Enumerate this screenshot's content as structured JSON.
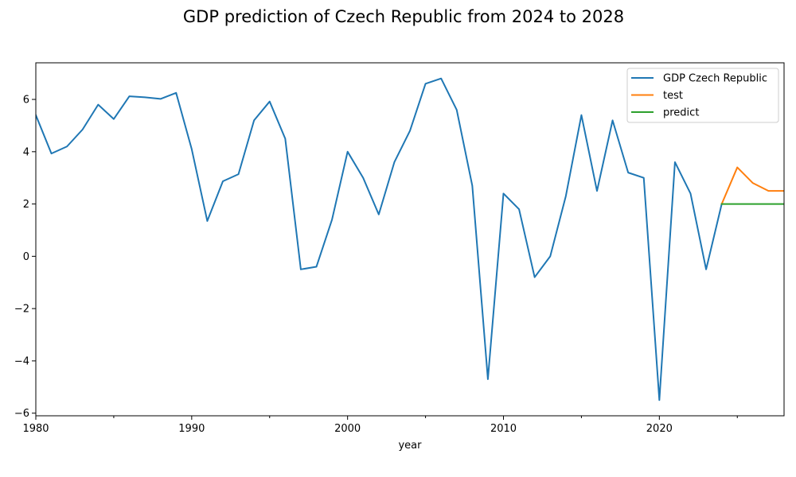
{
  "chart_data": {
    "type": "line",
    "title": "GDP prediction of Czech Republic from 2024 to 2028",
    "xlabel": "year",
    "ylabel": "",
    "xlim": [
      1980,
      2028
    ],
    "ylim": [
      -6.1,
      7.4
    ],
    "x_ticks": [
      1980,
      1990,
      2000,
      2010,
      2020
    ],
    "x_minor_ticks": [
      1985,
      1995,
      2005,
      2015,
      2025
    ],
    "y_ticks": [
      -6,
      -4,
      -2,
      0,
      2,
      4,
      6
    ],
    "grid": false,
    "legend_position": "top-right",
    "series": [
      {
        "name": "GDP Czech Republic",
        "color": "#1f77b4",
        "x": [
          1980,
          1981,
          1982,
          1983,
          1984,
          1985,
          1986,
          1987,
          1988,
          1989,
          1990,
          1991,
          1992,
          1993,
          1994,
          1995,
          1996,
          1997,
          1998,
          1999,
          2000,
          2001,
          2002,
          2003,
          2004,
          2005,
          2006,
          2007,
          2008,
          2009,
          2010,
          2011,
          2012,
          2013,
          2014,
          2015,
          2016,
          2017,
          2018,
          2019,
          2020,
          2021,
          2022,
          2023,
          2024
        ],
        "values": [
          5.4,
          3.93,
          4.2,
          4.85,
          5.8,
          5.25,
          6.12,
          6.08,
          6.02,
          6.25,
          4.1,
          1.35,
          2.87,
          3.14,
          5.2,
          5.92,
          4.5,
          -0.5,
          -0.4,
          1.4,
          4.0,
          3.0,
          1.6,
          3.6,
          4.8,
          6.6,
          6.8,
          5.6,
          2.7,
          -4.7,
          2.4,
          1.8,
          -0.8,
          0.0,
          2.3,
          5.4,
          2.5,
          5.2,
          3.2,
          3.0,
          -5.5,
          3.6,
          2.4,
          -0.5,
          2.0
        ]
      },
      {
        "name": "test",
        "color": "#ff7f0e",
        "x": [
          2024,
          2025,
          2026,
          2027,
          2028
        ],
        "values": [
          2.0,
          3.4,
          2.8,
          2.5,
          2.5
        ]
      },
      {
        "name": "predict",
        "color": "#2ca02c",
        "x": [
          2024,
          2025,
          2026,
          2027,
          2028
        ],
        "values": [
          2.0,
          2.0,
          2.0,
          2.0,
          2.0
        ]
      }
    ]
  }
}
